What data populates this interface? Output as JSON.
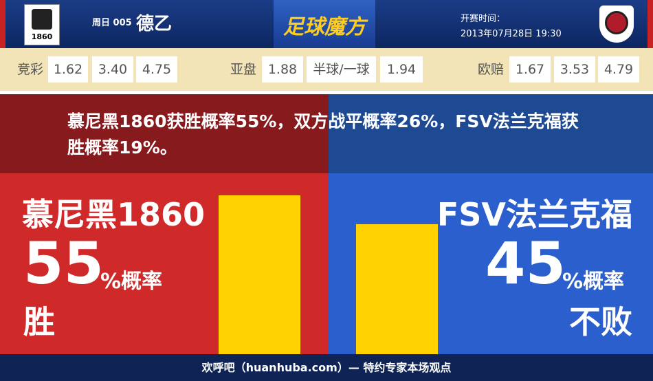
{
  "header": {
    "match_day": "周日 005",
    "league": "德乙",
    "brand": "足球魔方",
    "time_label": "开赛时间：",
    "time": "2013年07月28日 19:30",
    "home_badge": "1860"
  },
  "odds": [
    {
      "label": "竞彩",
      "values": [
        "1.62",
        "3.40",
        "4.75"
      ]
    },
    {
      "label": "亚盘",
      "values": [
        "1.88",
        "半球/一球",
        "1.94"
      ]
    },
    {
      "label": "欧赔",
      "values": [
        "1.67",
        "3.53",
        "4.79"
      ]
    }
  ],
  "summary": "慕尼黑1860获胜概率55%，双方战平概率26%，FSV法兰克福获胜概率19%。",
  "home": {
    "name": "慕尼黑1860",
    "percent": 55,
    "unit": "%概率",
    "result": "胜"
  },
  "away": {
    "name": "FSV法兰克福",
    "percent": 45,
    "unit": "%概率",
    "result": "不败"
  },
  "footer": "欢呼吧（huanhuba.com）— 特约专家本场观点"
}
